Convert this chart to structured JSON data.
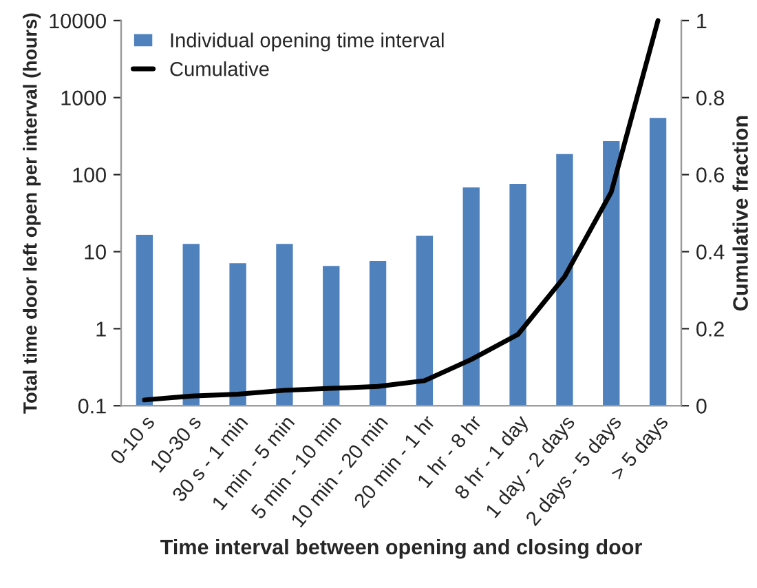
{
  "chart_data": {
    "type": "bar",
    "xlabel": "Time interval between opening and closing door",
    "ylabel": "Total time door left open per interval (hours)",
    "y2label": "Cumulative fraction",
    "categories": [
      "0-10 s",
      "10-30 s",
      "30 s - 1 min",
      "1 min - 5 min",
      "5 min - 10 min",
      "10 min - 20 min",
      "20 min - 1 hr",
      "1 hr - 8 hr",
      "8 hr - 1 day",
      "1 day - 2 days",
      "2 days - 5 days",
      "> 5 days"
    ],
    "series": [
      {
        "name": "Individual opening time interval",
        "color": "#4f81bd",
        "values": [
          17,
          13,
          7.3,
          13,
          6.7,
          7.8,
          16.5,
          70,
          78,
          190,
          280,
          560
        ]
      },
      {
        "name": "Cumulative",
        "type": "line",
        "axis": "y2",
        "color": "#000000",
        "values": [
          0.015,
          0.025,
          0.03,
          0.04,
          0.045,
          0.05,
          0.065,
          0.12,
          0.185,
          0.335,
          0.555,
          1.0
        ]
      }
    ],
    "log": "y",
    "ylim": [
      0.1,
      10000
    ],
    "yticks": [
      0.1,
      1,
      10,
      100,
      1000,
      10000
    ],
    "y2lim": [
      0,
      1
    ],
    "y2ticks": [
      0,
      0.2,
      0.4,
      0.6,
      0.8,
      1
    ],
    "grid": false,
    "legend": "top left",
    "marker": "none",
    "line_style": "solid"
  }
}
